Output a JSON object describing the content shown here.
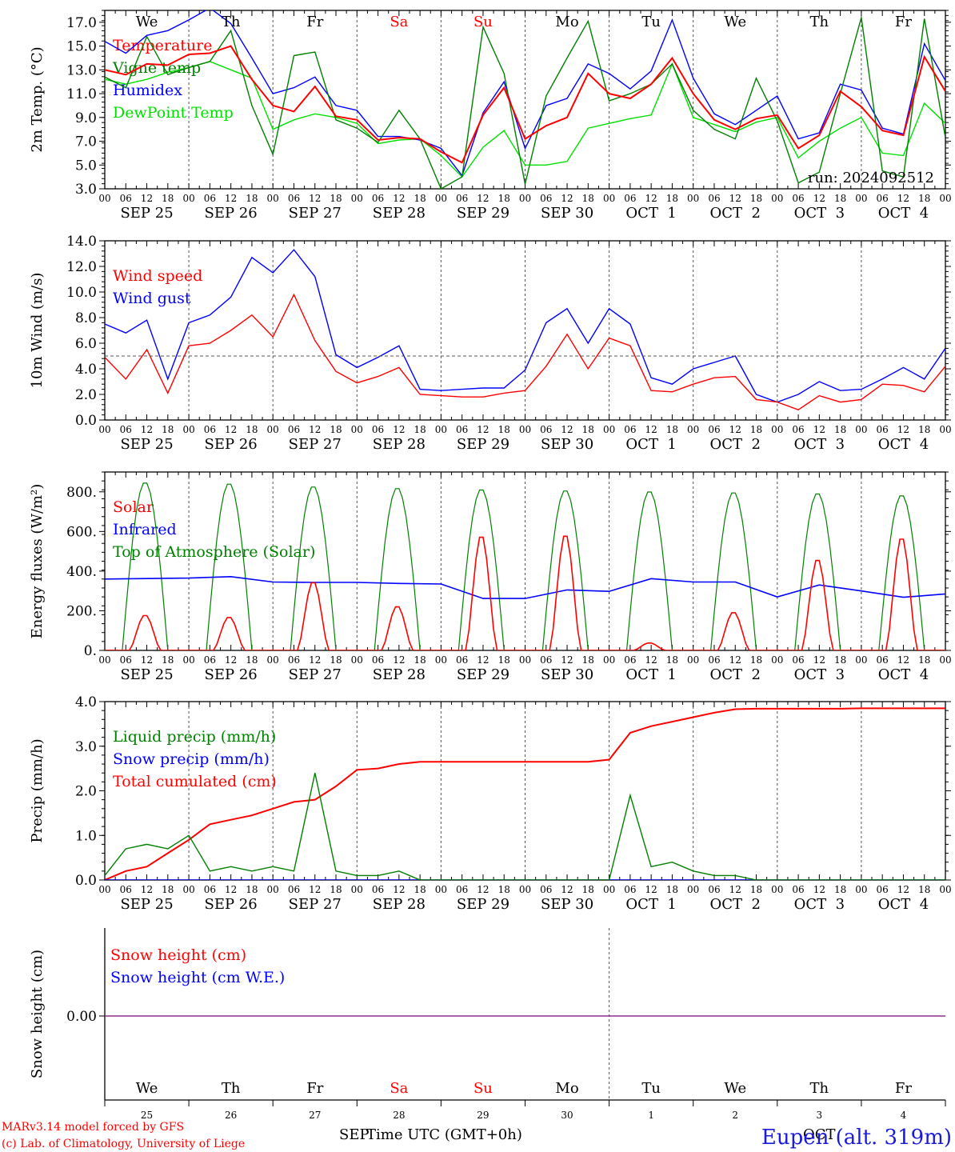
{
  "footer": {
    "model": "MARv3.14 model forced by GFS",
    "credit": "(c) Lab. of Climatology, University of Liege",
    "xlabel": "Time UTC (GMT+0h)",
    "month_left": "SEP",
    "month_right": "OCT",
    "station": "Eupen (alt. 319m)"
  },
  "hour_ticks": [
    "00",
    "06",
    "12",
    "18"
  ],
  "day_labels": [
    "SEP 25",
    "SEP 26",
    "SEP 27",
    "SEP 28",
    "SEP 29",
    "SEP 30",
    "OCT  1",
    "OCT  2",
    "OCT  3",
    "OCT  4"
  ],
  "weekdays": [
    {
      "label": "We",
      "color": "#000000"
    },
    {
      "label": "Th",
      "color": "#000000"
    },
    {
      "label": "Fr",
      "color": "#000000"
    },
    {
      "label": "Sa",
      "color": "#ff0000"
    },
    {
      "label": "Su",
      "color": "#ff0000"
    },
    {
      "label": "Mo",
      "color": "#000000"
    },
    {
      "label": "Tu",
      "color": "#000000"
    },
    {
      "label": "We",
      "color": "#000000"
    },
    {
      "label": "Th",
      "color": "#000000"
    },
    {
      "label": "Fr",
      "color": "#000000"
    }
  ],
  "day_numbers": [
    "25",
    "26",
    "27",
    "28",
    "29",
    "30",
    "1",
    "2",
    "3",
    "4"
  ],
  "chart_data": [
    {
      "type": "line",
      "ylabel": "2m Temp. (°C)",
      "ylim": [
        3,
        18
      ],
      "yticks": [
        "3.0",
        "5.0",
        "7.0",
        "9.0",
        "11.0",
        "13.0",
        "15.0",
        "17.0"
      ],
      "ytick_values": [
        3,
        5,
        7,
        9,
        11,
        13,
        15,
        17
      ],
      "annotation": "run: 2024092512",
      "x": [
        0,
        6,
        12,
        18,
        24,
        30,
        36,
        42,
        48,
        54,
        60,
        66,
        72,
        78,
        84,
        90,
        96,
        102,
        108,
        114,
        120,
        126,
        132,
        138,
        144,
        150,
        156,
        162,
        168,
        174,
        180,
        186,
        192,
        198,
        204,
        210,
        216,
        222,
        228,
        234,
        240
      ],
      "series": [
        {
          "name": "Temperature",
          "color": "#ff0000",
          "values": [
            13.0,
            12.6,
            13.5,
            13.4,
            14.3,
            14.4,
            15.0,
            12.2,
            10.0,
            9.5,
            11.6,
            9.1,
            8.8,
            7.1,
            7.3,
            7.2,
            6.1,
            5.2,
            9.2,
            11.5,
            7.2,
            8.3,
            9.0,
            12.7,
            11.0,
            10.6,
            11.8,
            14.0,
            11.0,
            8.8,
            8.0,
            8.9,
            9.2,
            6.4,
            7.5,
            11.2,
            9.9,
            7.9,
            7.5,
            14.1,
            11.2
          ]
        },
        {
          "name": "Vigne temp",
          "color": "#008000",
          "values": [
            12.4,
            11.5,
            15.8,
            12.6,
            13.2,
            13.7,
            16.3,
            10.0,
            5.9,
            14.2,
            14.5,
            8.8,
            8.1,
            6.9,
            9.6,
            7.2,
            3.0,
            4.0,
            16.6,
            12.7,
            3.4,
            10.8,
            14.0,
            17.1,
            10.4,
            11.0,
            11.8,
            13.5,
            9.6,
            8.0,
            7.2,
            12.3,
            8.7,
            3.5,
            4.4,
            11.0,
            17.4,
            4.5,
            4.0,
            17.3,
            7.3
          ]
        },
        {
          "name": "Humidex",
          "color": "#0000ff",
          "values": [
            15.4,
            14.4,
            15.9,
            16.3,
            17.2,
            18.2,
            16.9,
            14.0,
            11.0,
            11.5,
            12.4,
            10.0,
            9.6,
            7.4,
            7.4,
            7.1,
            6.4,
            4.1,
            9.4,
            12.0,
            6.4,
            10.0,
            10.6,
            13.5,
            12.7,
            11.4,
            12.9,
            17.2,
            12.3,
            9.3,
            8.4,
            9.6,
            10.8,
            7.2,
            7.7,
            11.8,
            11.3,
            8.1,
            7.6,
            15.2,
            12.1
          ]
        },
        {
          "name": "DewPoint Temp",
          "color": "#00e000",
          "values": [
            12.2,
            11.8,
            12.2,
            12.8,
            13.2,
            13.7,
            13.0,
            12.3,
            8.0,
            8.8,
            9.3,
            9.0,
            8.5,
            6.8,
            7.1,
            7.2,
            5.8,
            4.0,
            6.5,
            7.9,
            5.0,
            5.0,
            5.3,
            8.1,
            8.5,
            8.9,
            9.2,
            13.5,
            9.0,
            8.4,
            7.8,
            8.6,
            9.0,
            5.6,
            7.0,
            8.1,
            9.0,
            6.0,
            5.8,
            10.2,
            8.5
          ]
        }
      ]
    },
    {
      "type": "line",
      "ylabel": "10m Wind (m/s)",
      "ylim": [
        0,
        14
      ],
      "yticks": [
        "0.0",
        "2.0",
        "4.0",
        "6.0",
        "8.0",
        "10.0",
        "12.0",
        "14.0"
      ],
      "ytick_values": [
        0,
        2,
        4,
        6,
        8,
        10,
        12,
        14
      ],
      "reference_line": 5,
      "x": [
        0,
        6,
        12,
        18,
        24,
        30,
        36,
        42,
        48,
        54,
        60,
        66,
        72,
        78,
        84,
        90,
        96,
        102,
        108,
        114,
        120,
        126,
        132,
        138,
        144,
        150,
        156,
        162,
        168,
        174,
        180,
        186,
        192,
        198,
        204,
        210,
        216,
        222,
        228,
        234,
        240
      ],
      "series": [
        {
          "name": "Wind speed",
          "color": "#ff0000",
          "values": [
            4.9,
            3.2,
            5.5,
            2.1,
            5.8,
            6.0,
            7.0,
            8.2,
            6.5,
            9.8,
            6.2,
            3.8,
            2.9,
            3.4,
            4.1,
            2.0,
            1.9,
            1.8,
            1.8,
            2.1,
            2.3,
            4.2,
            6.7,
            4.0,
            6.4,
            5.8,
            2.3,
            2.2,
            2.8,
            3.3,
            3.4,
            1.6,
            1.4,
            0.8,
            1.9,
            1.4,
            1.6,
            2.8,
            2.7,
            2.2,
            4.2
          ]
        },
        {
          "name": "Wind gust",
          "color": "#0000ff",
          "values": [
            7.5,
            6.8,
            7.8,
            3.2,
            7.6,
            8.2,
            9.6,
            12.7,
            11.5,
            13.3,
            11.2,
            5.1,
            4.1,
            4.9,
            5.8,
            2.4,
            2.3,
            2.4,
            2.5,
            2.5,
            3.9,
            7.6,
            8.7,
            6.0,
            8.7,
            7.5,
            3.3,
            2.8,
            4.0,
            4.5,
            5.0,
            2.0,
            1.4,
            2.0,
            3.0,
            2.3,
            2.4,
            3.2,
            4.1,
            3.2,
            5.6
          ]
        }
      ]
    },
    {
      "type": "line",
      "ylabel": "Energy fluxes (W/m²)",
      "ylim": [
        0,
        900
      ],
      "yticks": [
        "0.",
        "200.",
        "400.",
        "600.",
        "800."
      ],
      "ytick_values": [
        0,
        200,
        400,
        600,
        800
      ],
      "daily_solar_peaks": [
        180,
        170,
        350,
        225,
        585,
        590,
        38,
        195,
        465,
        575
      ],
      "toa_peaks": [
        850,
        845,
        830,
        822,
        815,
        810,
        805,
        800,
        795,
        785
      ],
      "infrared": {
        "x": [
          0,
          24,
          36,
          48,
          60,
          72,
          84,
          96,
          108,
          120,
          132,
          144,
          156,
          168,
          180,
          192,
          204,
          216,
          228,
          240
        ],
        "values": [
          360,
          365,
          372,
          345,
          343,
          343,
          338,
          335,
          262,
          262,
          305,
          298,
          362,
          345,
          345,
          270,
          330,
          300,
          268,
          285
        ]
      },
      "series": [
        {
          "name": "Solar",
          "color": "#ff0000"
        },
        {
          "name": "Infrared",
          "color": "#0000ff"
        },
        {
          "name": "Top of Atmosphere (Solar)",
          "color": "#008000"
        }
      ]
    },
    {
      "type": "line",
      "ylabel": "Precip (mm/h)",
      "ylim": [
        0,
        4
      ],
      "yticks": [
        "0.0",
        "1.0",
        "2.0",
        "3.0",
        "4.0"
      ],
      "ytick_values": [
        0,
        1,
        2,
        3,
        4
      ],
      "x": [
        0,
        6,
        12,
        18,
        24,
        30,
        36,
        42,
        48,
        54,
        60,
        66,
        72,
        78,
        84,
        90,
        96,
        102,
        108,
        114,
        120,
        126,
        132,
        138,
        144,
        150,
        156,
        162,
        168,
        174,
        180,
        186,
        192,
        198,
        204,
        210,
        216,
        222,
        228,
        234,
        240
      ],
      "series": [
        {
          "name": "Liquid precip (mm/h)",
          "color": "#008000",
          "values": [
            0.1,
            0.7,
            0.8,
            0.7,
            1.0,
            0.2,
            0.3,
            0.2,
            0.3,
            0.2,
            2.4,
            0.2,
            0.1,
            0.1,
            0.2,
            0.0,
            0.0,
            0.0,
            0.0,
            0.0,
            0.0,
            0.0,
            0.0,
            0.0,
            0.0,
            1.9,
            0.3,
            0.4,
            0.2,
            0.1,
            0.1,
            0.0,
            0.0,
            0.0,
            0.0,
            0.0,
            0.0,
            0.0,
            0.0,
            0.0,
            0.0
          ]
        },
        {
          "name": "Snow precip (mm/h)",
          "color": "#0000ff",
          "values": [
            0,
            0,
            0,
            0,
            0,
            0,
            0,
            0,
            0,
            0,
            0,
            0,
            0,
            0,
            0,
            0,
            0,
            0,
            0,
            0,
            0,
            0,
            0,
            0,
            0,
            0,
            0,
            0,
            0,
            0,
            0,
            0,
            0,
            0,
            0,
            0,
            0,
            0,
            0,
            0,
            0
          ]
        },
        {
          "name": "Total cumulated (cm)",
          "color": "#ff0000",
          "values": [
            0.0,
            0.2,
            0.3,
            0.6,
            0.9,
            1.25,
            1.35,
            1.45,
            1.6,
            1.75,
            1.8,
            2.1,
            2.47,
            2.5,
            2.6,
            2.65,
            2.65,
            2.65,
            2.65,
            2.65,
            2.65,
            2.65,
            2.65,
            2.65,
            2.7,
            3.3,
            3.45,
            3.55,
            3.65,
            3.75,
            3.83,
            3.84,
            3.84,
            3.84,
            3.84,
            3.84,
            3.85,
            3.85,
            3.85,
            3.85,
            3.85
          ]
        }
      ]
    },
    {
      "type": "line",
      "ylabel": "Snow height (cm)",
      "yticks": [
        "0.00"
      ],
      "series": [
        {
          "name": "Snow height (cm)",
          "color": "#ff0000",
          "values": [
            0,
            0
          ]
        },
        {
          "name": "Snow height (cm W.E.)",
          "color": "#0000ff",
          "values": [
            0,
            0
          ]
        }
      ]
    }
  ]
}
